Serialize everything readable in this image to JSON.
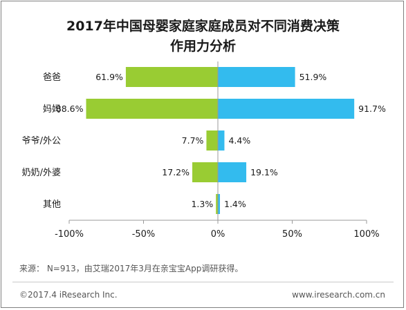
{
  "chart_data": {
    "type": "bar",
    "orientation": "horizontal-diverging",
    "title_line1": "2017年中国母婴家庭家庭成员对不同消费决策",
    "title_line2": "作用力分析",
    "categories": [
      "爸爸",
      "妈妈",
      "爷爷/外公",
      "奶奶/外婆",
      "其他"
    ],
    "series": [
      {
        "values": [
          -61.9,
          -88.6,
          -7.7,
          -17.2,
          -1.3
        ],
        "labels": [
          "61.9%",
          "88.6%",
          "7.7%",
          "17.2%",
          "1.3%"
        ],
        "color": "#99cc33"
      },
      {
        "values": [
          51.9,
          91.7,
          4.4,
          19.1,
          1.4
        ],
        "labels": [
          "51.9%",
          "91.7%",
          "4.4%",
          "19.1%",
          "1.4%"
        ],
        "color": "#33bbee"
      }
    ],
    "xlim": [
      -100,
      100
    ],
    "xticks": [
      -100,
      -50,
      0,
      50,
      100
    ],
    "xtick_labels": [
      "-100%",
      "-50%",
      "0%",
      "50%",
      "100%"
    ],
    "grid": false
  },
  "source": "来源： N=913，由艾瑞2017年3月在亲宝宝App调研获得。",
  "footer": {
    "copyright": "©2017.4 iResearch Inc.",
    "website": "www.iresearch.com.cn"
  }
}
